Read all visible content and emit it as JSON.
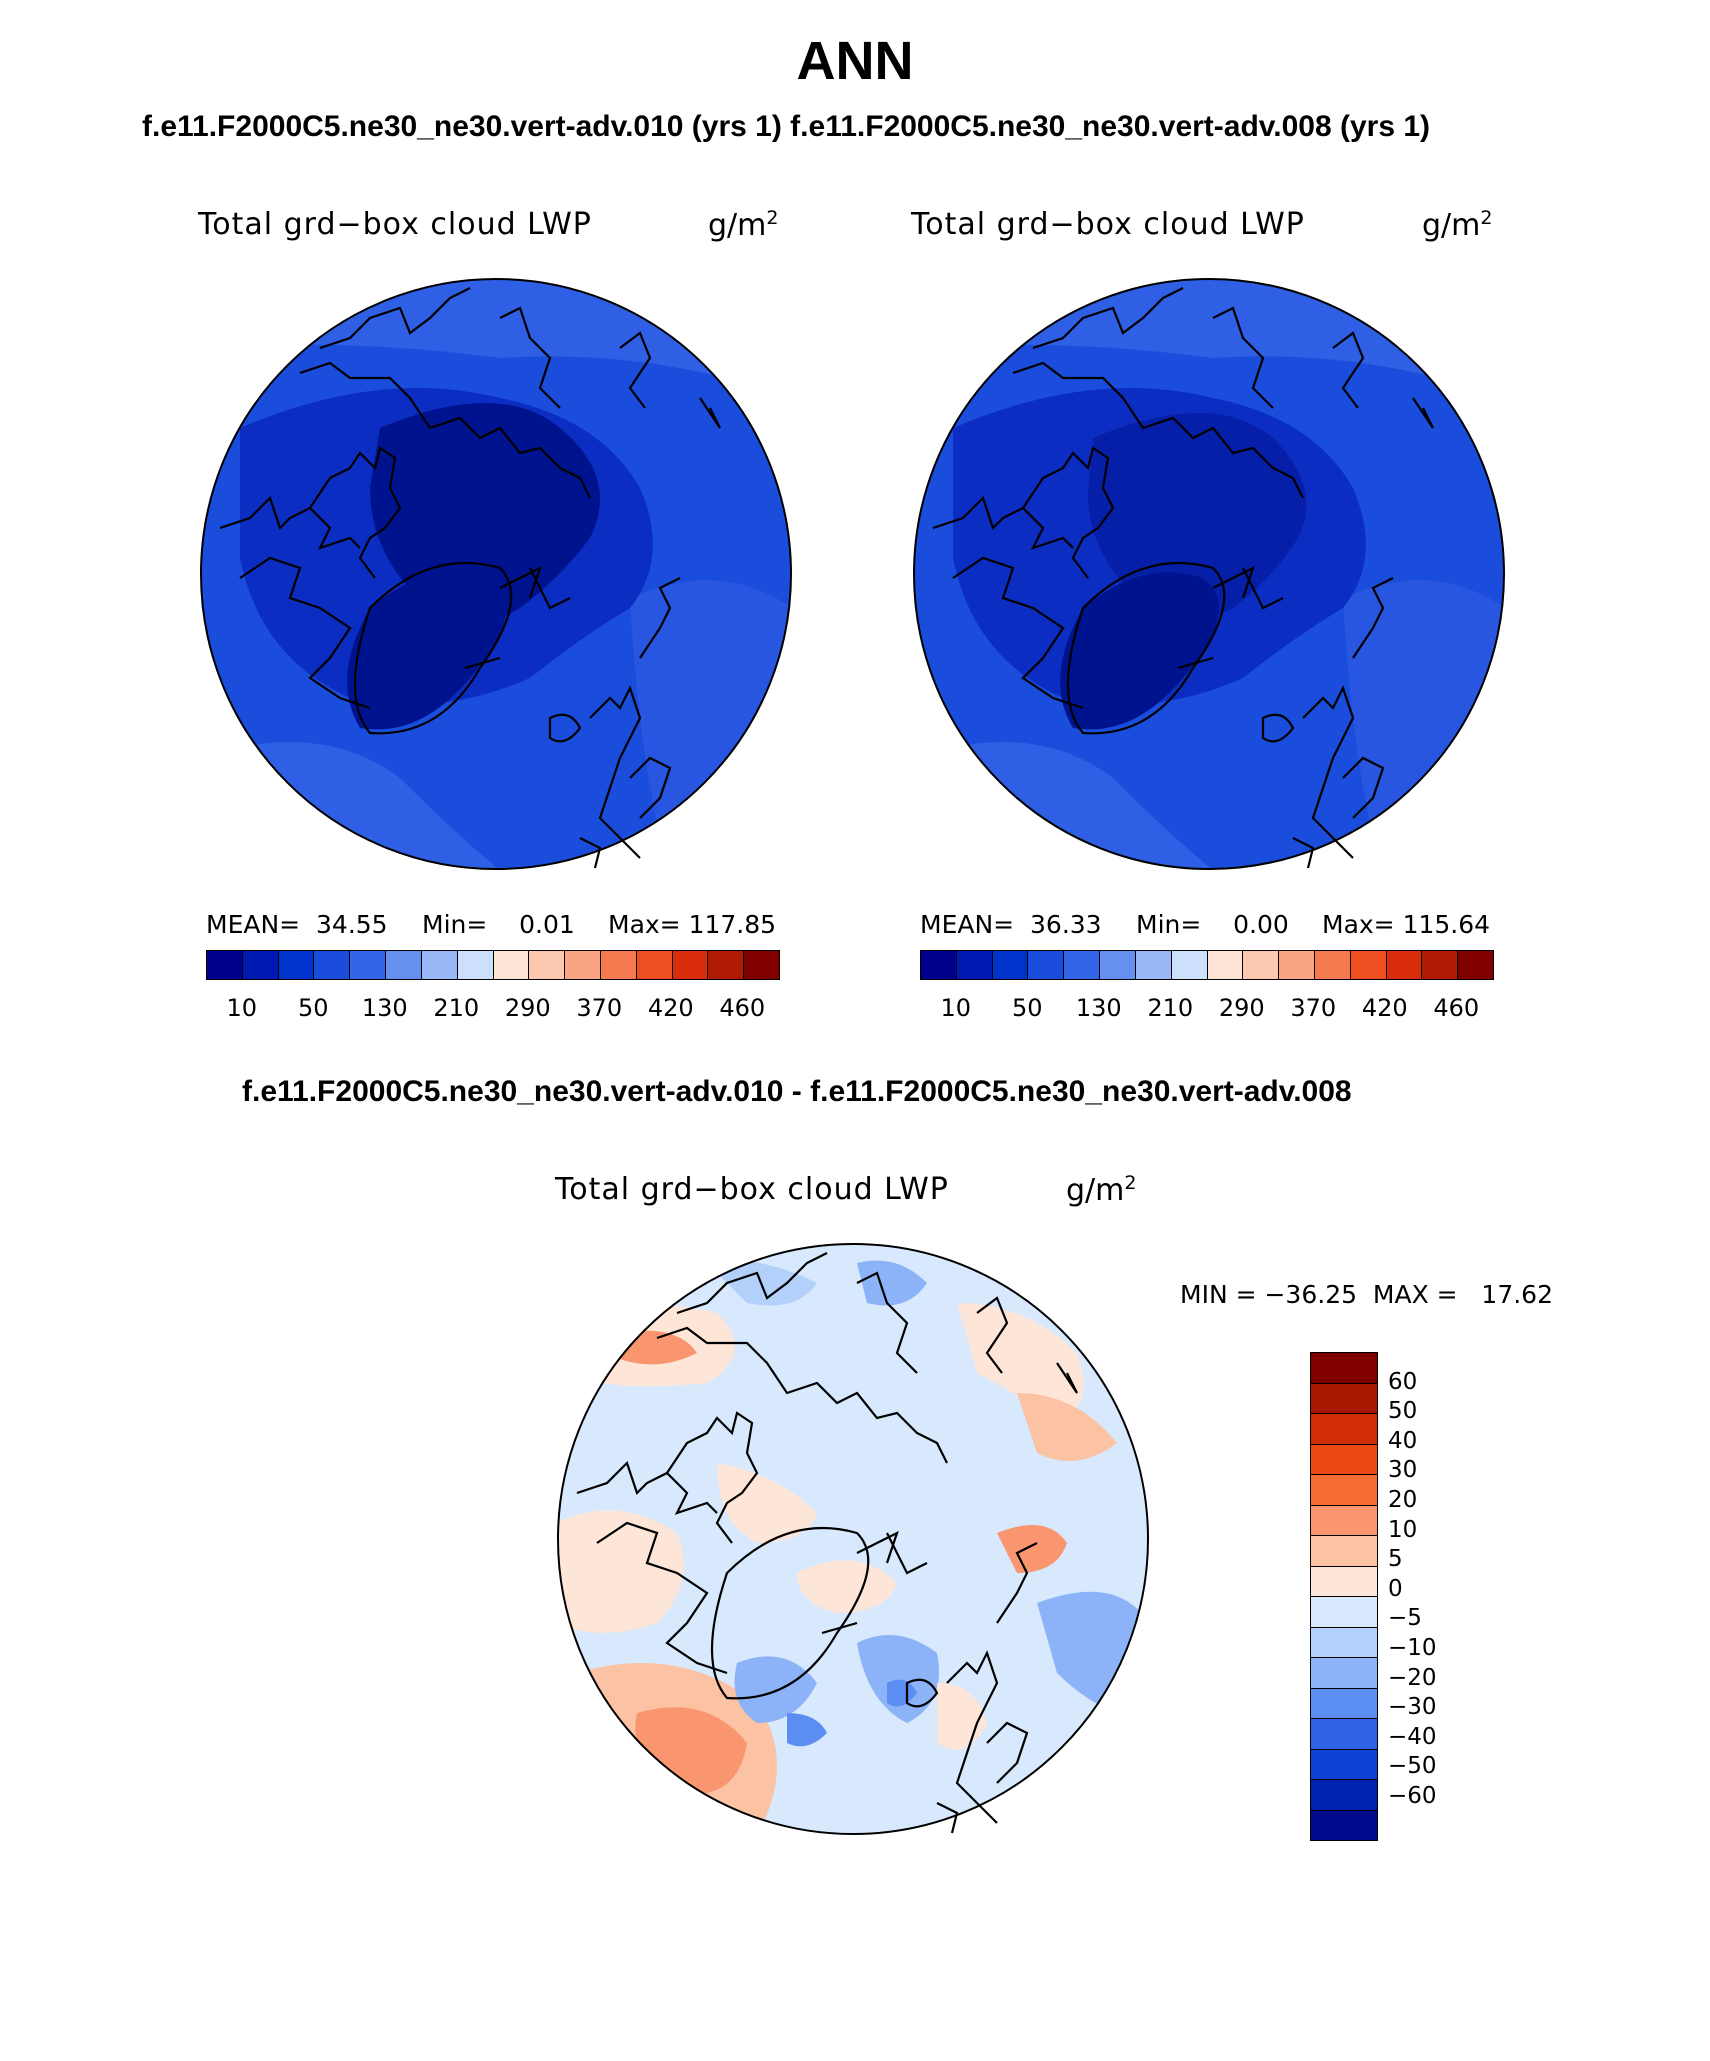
{
  "season": "ANN",
  "top_subtitle": "f.e11.F2000C5.ne30_ne30.vert-adv.010 (yrs 1)  f.e11.F2000C5.ne30_ne30.vert-adv.008 (yrs 1)",
  "diff_subtitle": "f.e11.F2000C5.ne30_ne30.vert-adv.010 - f.e11.F2000C5.ne30_ne30.vert-adv.008",
  "variable": "Total grd−box cloud LWP",
  "units_base": "g/m",
  "units_exp": "2",
  "panels": [
    {
      "mean": "MEAN=  34.55",
      "min": "Min=    0.01",
      "max": "Max= 117.85"
    },
    {
      "mean": "MEAN=  36.33",
      "min": "Min=    0.00",
      "max": "Max= 115.64"
    }
  ],
  "diff_stats": "MIN = −36.25  MAX =   17.62",
  "abs_colorbar": {
    "colors": [
      "#00008c",
      "#0019b3",
      "#0033cc",
      "#1a4ddb",
      "#3366e6",
      "#6690f0",
      "#99b6f6",
      "#cce0fc",
      "#fde6d6",
      "#fcc8b0",
      "#f9a482",
      "#f57a50",
      "#ee4f20",
      "#d92c0a",
      "#b01a02",
      "#800000"
    ],
    "ticks": [
      "10",
      "50",
      "130",
      "210",
      "290",
      "370",
      "420",
      "460"
    ]
  },
  "diff_colorbar": {
    "colors": [
      "#800000",
      "#a81800",
      "#d22e05",
      "#ec4a15",
      "#f56d33",
      "#f99670",
      "#fbc2a3",
      "#fde6d8",
      "#d8e8fd",
      "#b3d0fb",
      "#8cb3f8",
      "#5c8df2",
      "#2f63e8",
      "#0d40d6",
      "#0022b0",
      "#00088c"
    ],
    "ticks": [
      "60",
      "50",
      "40",
      "30",
      "20",
      "10",
      "5",
      "0",
      "−5",
      "−10",
      "−20",
      "−30",
      "−40",
      "−50",
      "−60"
    ]
  }
}
